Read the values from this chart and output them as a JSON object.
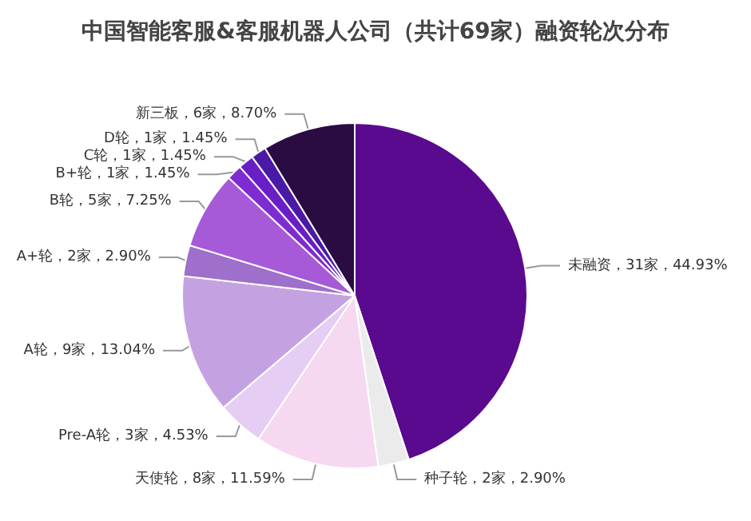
{
  "chart_data": {
    "type": "pie",
    "title": "中国智能客服&客服机器人公司（共计69家）融资轮次分布",
    "categories": [
      "未融资",
      "种子轮",
      "天使轮",
      "Pre-A轮",
      "A轮",
      "A+轮",
      "B轮",
      "B+轮",
      "C轮",
      "D轮",
      "新三板"
    ],
    "values": [
      31,
      2,
      8,
      3,
      9,
      2,
      5,
      1,
      1,
      1,
      6
    ],
    "value_labels": [
      "31家，44.93%",
      "2家，2.90%",
      "8家，11.59%",
      "3家，4.53%",
      "9家，13.04%",
      "2家，2.90%",
      "5家，7.25%",
      "1家，1.45%",
      "1家，1.45%",
      "1家，1.45%",
      "6家，8.70%"
    ],
    "colors": [
      "#5a0a8f",
      "#ebebeb",
      "#f6d8f1",
      "#e6cdf3",
      "#c4a2e2",
      "#9e6fcb",
      "#a65ad8",
      "#7f2bd2",
      "#6a1ec6",
      "#4a1aa6",
      "#2a0b42"
    ],
    "legend": false
  }
}
